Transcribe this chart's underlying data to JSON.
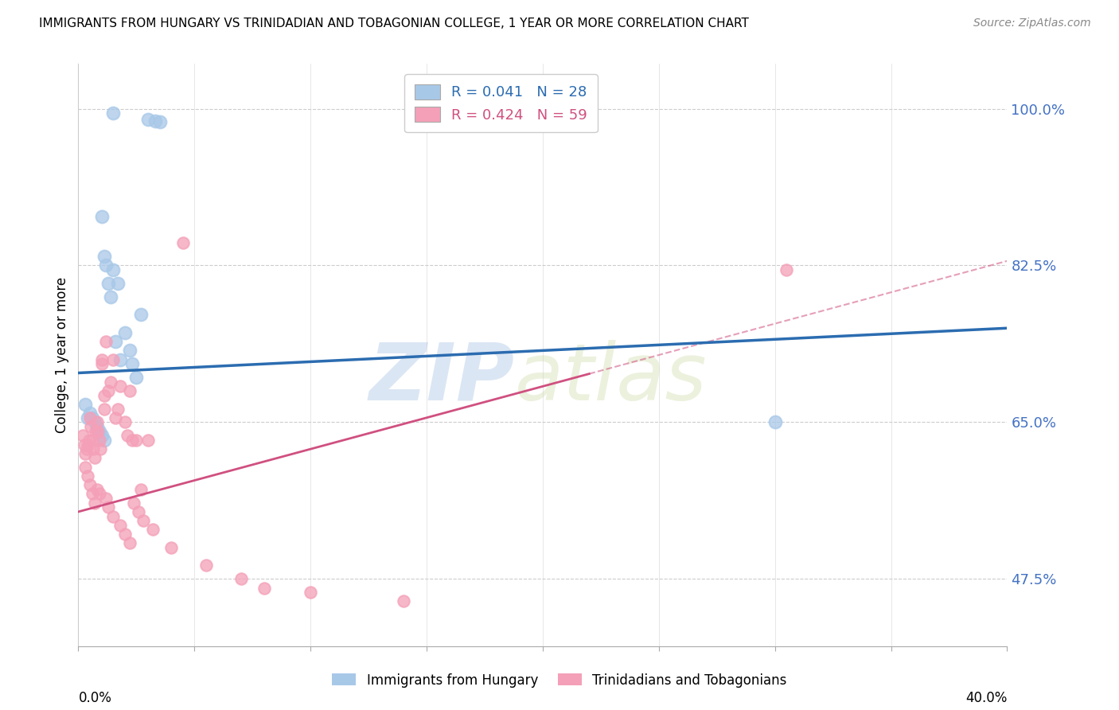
{
  "title": "IMMIGRANTS FROM HUNGARY VS TRINIDADIAN AND TOBAGONIAN COLLEGE, 1 YEAR OR MORE CORRELATION CHART",
  "source": "Source: ZipAtlas.com",
  "ylabel": "College, 1 year or more",
  "right_yticks": [
    47.5,
    65.0,
    82.5,
    100.0
  ],
  "right_ytick_labels": [
    "47.5%",
    "65.0%",
    "82.5%",
    "100.0%"
  ],
  "legend_1": "R = 0.041   N = 28",
  "legend_2": "R = 0.424   N = 59",
  "blue_color": "#a8c8e8",
  "pink_color": "#f4a0b8",
  "blue_line_color": "#2b6cb0",
  "pink_line_color": "#d05080",
  "watermark_zip": "ZIP",
  "watermark_atlas": "atlas",
  "xmin": 0.0,
  "xmax": 40.0,
  "ymin": 40.0,
  "ymax": 105.0,
  "blue_trend_x0": 0.0,
  "blue_trend_y0": 70.5,
  "blue_trend_x1": 40.0,
  "blue_trend_y1": 75.5,
  "pink_trend_x0": 0.0,
  "pink_trend_y0": 55.0,
  "pink_trend_x1": 40.0,
  "pink_trend_y1": 83.0,
  "pink_dash_x0": 22.0,
  "pink_dash_x1": 40.0,
  "blue_scatter_x": [
    1.5,
    3.0,
    3.3,
    3.5,
    1.0,
    1.1,
    1.2,
    1.3,
    1.4,
    1.5,
    1.6,
    1.7,
    1.8,
    2.0,
    2.2,
    2.3,
    2.5,
    2.7,
    0.3,
    0.4,
    0.5,
    0.6,
    0.7,
    0.8,
    0.9,
    1.0,
    1.1,
    30.0
  ],
  "blue_scatter_y": [
    99.5,
    98.8,
    98.6,
    98.5,
    88.0,
    83.5,
    82.5,
    80.5,
    79.0,
    82.0,
    74.0,
    80.5,
    72.0,
    75.0,
    73.0,
    71.5,
    70.0,
    77.0,
    67.0,
    65.5,
    66.0,
    65.5,
    65.0,
    64.5,
    64.0,
    63.5,
    63.0,
    65.0
  ],
  "pink_scatter_x": [
    0.2,
    0.25,
    0.3,
    0.35,
    0.4,
    0.45,
    0.5,
    0.55,
    0.6,
    0.65,
    0.7,
    0.75,
    0.8,
    0.85,
    0.9,
    0.95,
    1.0,
    1.0,
    1.1,
    1.1,
    1.2,
    1.3,
    1.4,
    1.5,
    1.6,
    1.7,
    1.8,
    2.0,
    2.1,
    2.2,
    2.3,
    2.5,
    2.7,
    3.0,
    4.5,
    0.3,
    0.4,
    0.5,
    0.6,
    0.7,
    0.8,
    0.9,
    1.2,
    1.3,
    1.5,
    1.8,
    2.0,
    2.2,
    2.4,
    2.6,
    2.8,
    3.2,
    4.0,
    5.5,
    7.0,
    8.0,
    10.0,
    14.0,
    30.5
  ],
  "pink_scatter_y": [
    63.5,
    62.5,
    61.5,
    62.0,
    62.5,
    63.0,
    65.5,
    64.5,
    63.0,
    62.0,
    61.0,
    64.0,
    65.0,
    64.0,
    63.0,
    62.0,
    71.5,
    72.0,
    68.0,
    66.5,
    74.0,
    68.5,
    69.5,
    72.0,
    65.5,
    66.5,
    69.0,
    65.0,
    63.5,
    68.5,
    63.0,
    63.0,
    57.5,
    63.0,
    85.0,
    60.0,
    59.0,
    58.0,
    57.0,
    56.0,
    57.5,
    57.0,
    56.5,
    55.5,
    54.5,
    53.5,
    52.5,
    51.5,
    56.0,
    55.0,
    54.0,
    53.0,
    51.0,
    49.0,
    47.5,
    46.5,
    46.0,
    45.0,
    82.0
  ]
}
